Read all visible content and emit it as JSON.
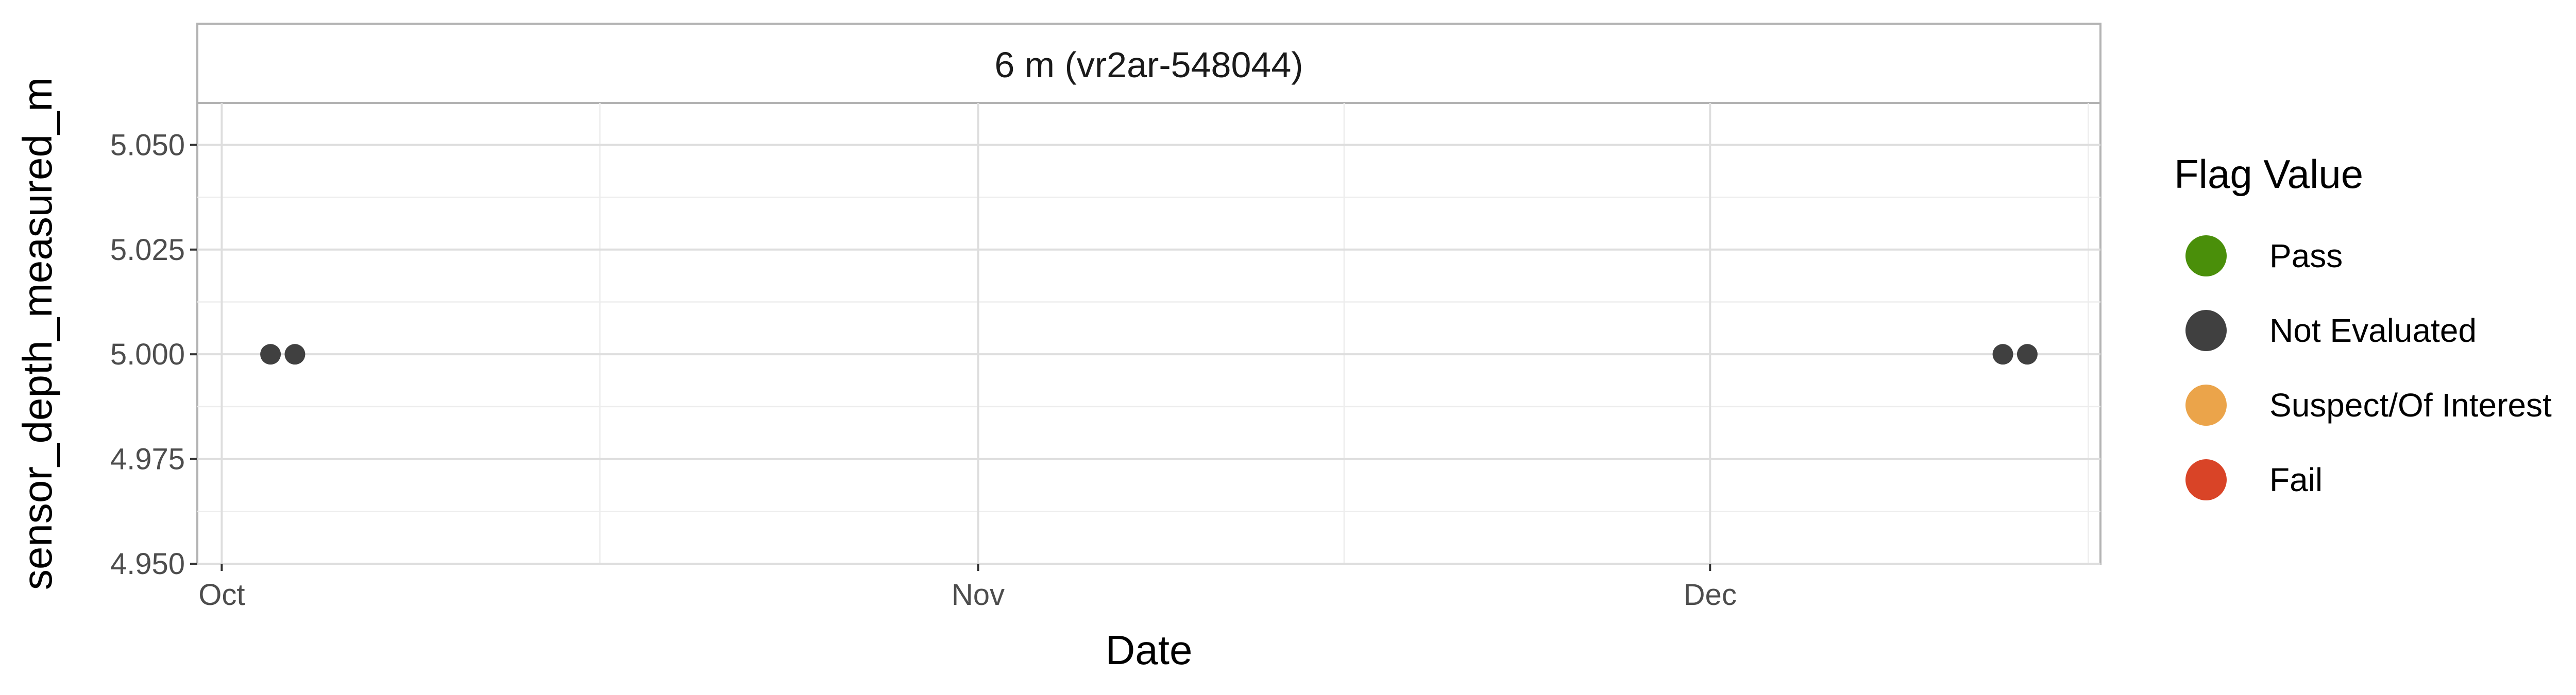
{
  "chart_data": {
    "type": "scatter",
    "panel_title": "6 m (vr2ar-548044)",
    "xlabel": "Date",
    "ylabel": "sensor_depth_measured_m",
    "x_ticks": [
      {
        "label": "Oct",
        "date": "2023-10-01"
      },
      {
        "label": "Nov",
        "date": "2023-11-01"
      },
      {
        "label": "Dec",
        "date": "2023-12-01"
      }
    ],
    "xlim": [
      "2023-09-30",
      "2023-12-17"
    ],
    "y_ticks": [
      "4.950",
      "4.975",
      "5.000",
      "5.025",
      "5.050"
    ],
    "ylim": [
      4.95,
      5.06
    ],
    "grid": true,
    "legend": {
      "title": "Flag Value",
      "position": "right",
      "entries": [
        {
          "label": "Pass",
          "color": "#4a8f0a"
        },
        {
          "label": "Not Evaluated",
          "color": "#404040"
        },
        {
          "label": "Suspect/Of Interest",
          "color": "#eba44a"
        },
        {
          "label": "Fail",
          "color": "#d94427"
        }
      ]
    },
    "series": [
      {
        "flag": "Not Evaluated",
        "color": "#404040",
        "points": [
          {
            "x": "2023-10-03",
            "y": 5.0
          },
          {
            "x": "2023-10-04",
            "y": 5.0
          },
          {
            "x": "2023-12-13",
            "y": 5.0
          },
          {
            "x": "2023-12-14",
            "y": 5.0
          }
        ]
      }
    ]
  }
}
